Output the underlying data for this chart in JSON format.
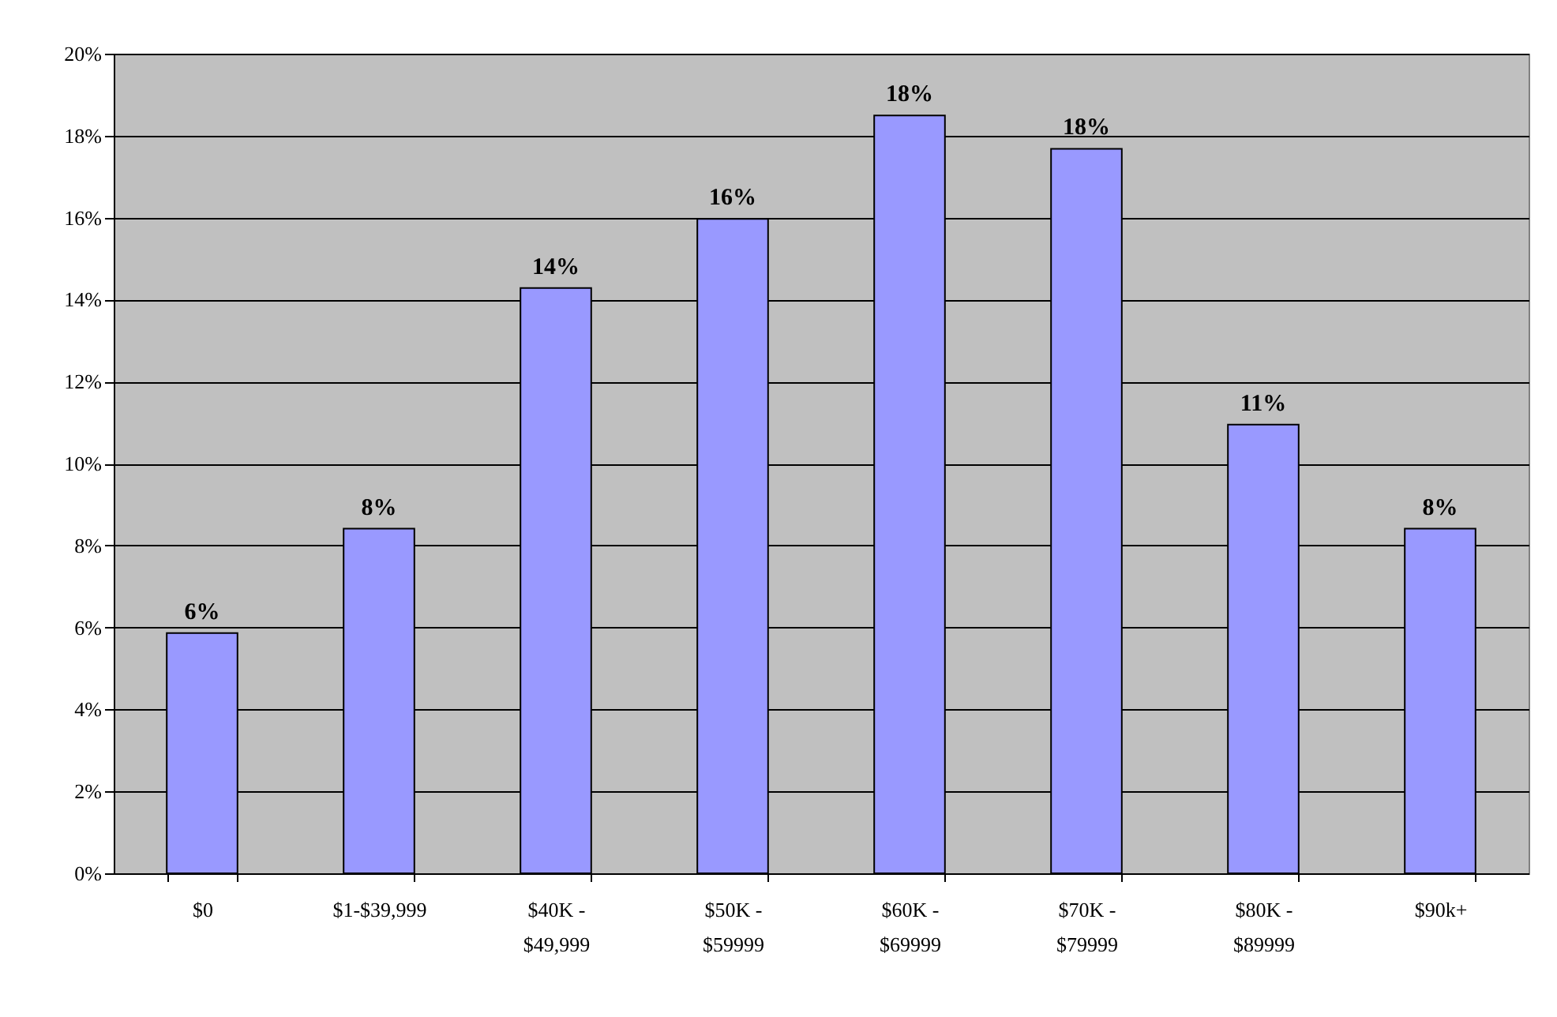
{
  "chart_data": {
    "type": "bar",
    "categories": [
      "$0",
      "$1-$39,999",
      "$40K -\n$49,999",
      "$50K -\n$59999",
      "$60K -\n$69999",
      "$70K -\n$79999",
      "$80K -\n$89999",
      "$90k+"
    ],
    "values": [
      5.86,
      8.41,
      14.28,
      15.97,
      18.49,
      17.68,
      10.95,
      8.41
    ],
    "value_labels": [
      "6%",
      "8%",
      "14%",
      "16%",
      "18%",
      "18%",
      "11%",
      "8%"
    ],
    "color": "#9999ff",
    "ylim": [
      0,
      20
    ],
    "yticks": [
      {
        "value": 0,
        "label": "0%"
      },
      {
        "value": 2,
        "label": "2%"
      },
      {
        "value": 4,
        "label": "4%"
      },
      {
        "value": 6,
        "label": "6%"
      },
      {
        "value": 8,
        "label": "8%"
      },
      {
        "value": 10,
        "label": "10%"
      },
      {
        "value": 12,
        "label": "12%"
      },
      {
        "value": 14,
        "label": "14%"
      },
      {
        "value": 16,
        "label": "16%"
      },
      {
        "value": 18,
        "label": "18%"
      },
      {
        "value": 20,
        "label": "20%"
      }
    ],
    "grid": "y"
  }
}
